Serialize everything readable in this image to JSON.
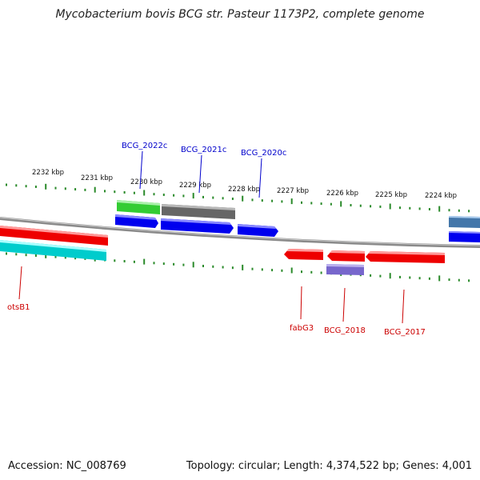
{
  "title": "Mycobacterium bovis BCG str. Pasteur 1173P2, complete genome",
  "footer": {
    "accession": "Accession: NC_008769",
    "summary": "Topology: circular; Length: 4,374,522 bp; Genes: 4,001"
  },
  "ticks": [
    "2232 kbp",
    "2231 kbp",
    "2230 kbp",
    "2229 kbp",
    "2228 kbp",
    "2227 kbp",
    "2226 kbp",
    "2225 kbp",
    "2224 kbp"
  ],
  "genes": [
    {
      "name": "BCG_2022c",
      "color": "#0000cc"
    },
    {
      "name": "BCG_2021c",
      "color": "#0000cc"
    },
    {
      "name": "BCG_2020c",
      "color": "#0000cc"
    },
    {
      "name": "otsB1",
      "color": "#cc0000"
    },
    {
      "name": "fabG3",
      "color": "#cc0000"
    },
    {
      "name": "BCG_2018",
      "color": "#cc0000"
    },
    {
      "name": "BCG_2017",
      "color": "#cc0000"
    }
  ],
  "colors": {
    "forward_cds": "#0000ee",
    "reverse_cds": "#ee0000",
    "gene_green": "#33cc33",
    "gene_gray": "#666666",
    "gene_cyan": "#00cccc",
    "gene_purple": "#7766cc",
    "gene_steel": "#4477aa",
    "backbone": "#888888",
    "tick": "#2a8a2a"
  }
}
